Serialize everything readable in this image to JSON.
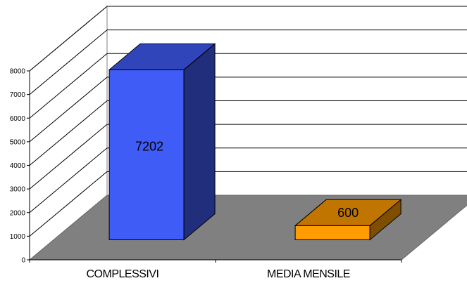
{
  "chart_data": {
    "type": "bar",
    "style": "3d-column",
    "categories": [
      "COMPLESSIVI",
      "MEDIA MENSILE"
    ],
    "values": [
      7202,
      600
    ],
    "data_labels": [
      "7202",
      "600"
    ],
    "y_ticks": [
      "0",
      "1000",
      "2000",
      "3000",
      "4000",
      "5000",
      "6000",
      "7000",
      "8000"
    ],
    "ylim": [
      0,
      8000
    ],
    "grid": true,
    "legend": "none",
    "colors": {
      "bar_1": "#3f5cf7",
      "bar_2": "#ff9c00",
      "floor": "#808080",
      "grid": "#000000"
    }
  }
}
